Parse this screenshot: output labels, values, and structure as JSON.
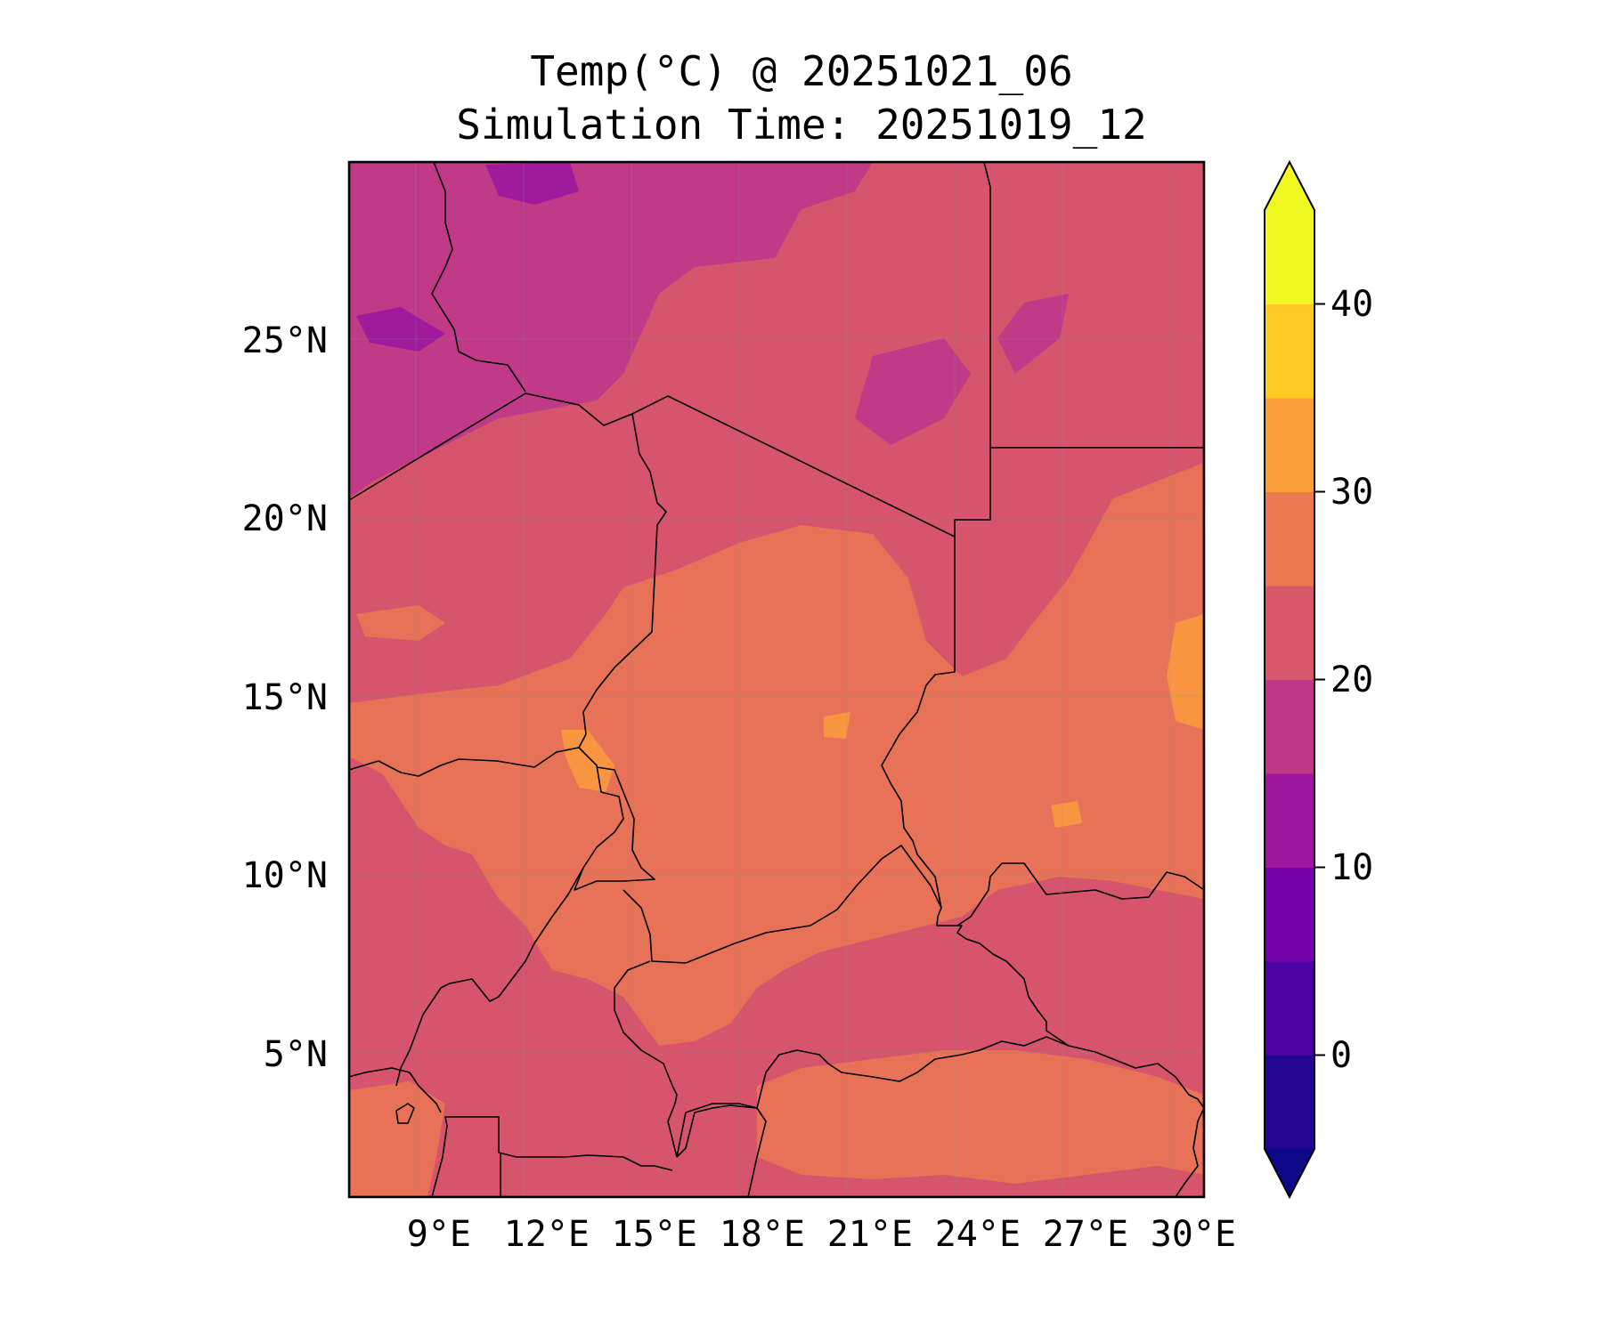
{
  "title": {
    "line1": "Temp(°C) @ 20251021_06",
    "line2": "Simulation Time: 20251019_12"
  },
  "map": {
    "lon_range": [
      6.5,
      30.3
    ],
    "lat_range": [
      1,
      30
    ],
    "lat_ticks": [
      {
        "value": 25,
        "label": "25°N"
      },
      {
        "value": 20,
        "label": "20°N"
      },
      {
        "value": 15,
        "label": "15°N"
      },
      {
        "value": 10,
        "label": "10°N"
      },
      {
        "value": 5,
        "label": "5°N"
      }
    ],
    "lon_ticks": [
      {
        "value": 9,
        "label": "9°E"
      },
      {
        "value": 12,
        "label": "12°E"
      },
      {
        "value": 15,
        "label": "15°E"
      },
      {
        "value": 18,
        "label": "18°E"
      },
      {
        "value": 21,
        "label": "21°E"
      },
      {
        "value": 24,
        "label": "24°E"
      },
      {
        "value": 27,
        "label": "27°E"
      },
      {
        "value": 30,
        "label": "30°E"
      }
    ],
    "field_colors": {
      "t10_15": "#a01a9c",
      "t15_20": "#c03a88",
      "t20_25": "#d6556d",
      "t25_30": "#e87258",
      "t30_35": "#f89540",
      "t35_40": "#fdb32f"
    }
  },
  "colorbar": {
    "levels": [
      -5,
      0,
      5,
      10,
      15,
      20,
      25,
      30,
      35,
      40,
      45
    ],
    "colors": [
      "#220690",
      "#4a02a0",
      "#7201a8",
      "#9c179e",
      "#bd3786",
      "#d8576b",
      "#ed7953",
      "#fb9f3a",
      "#fdca26",
      "#f0f921"
    ],
    "under_color": "#0d0887",
    "over_color": "#f0f921",
    "tick_labels": [
      {
        "value": 0,
        "label": "0"
      },
      {
        "value": 10,
        "label": "10"
      },
      {
        "value": 20,
        "label": "20"
      },
      {
        "value": 30,
        "label": "30"
      },
      {
        "value": 40,
        "label": "40"
      }
    ]
  }
}
